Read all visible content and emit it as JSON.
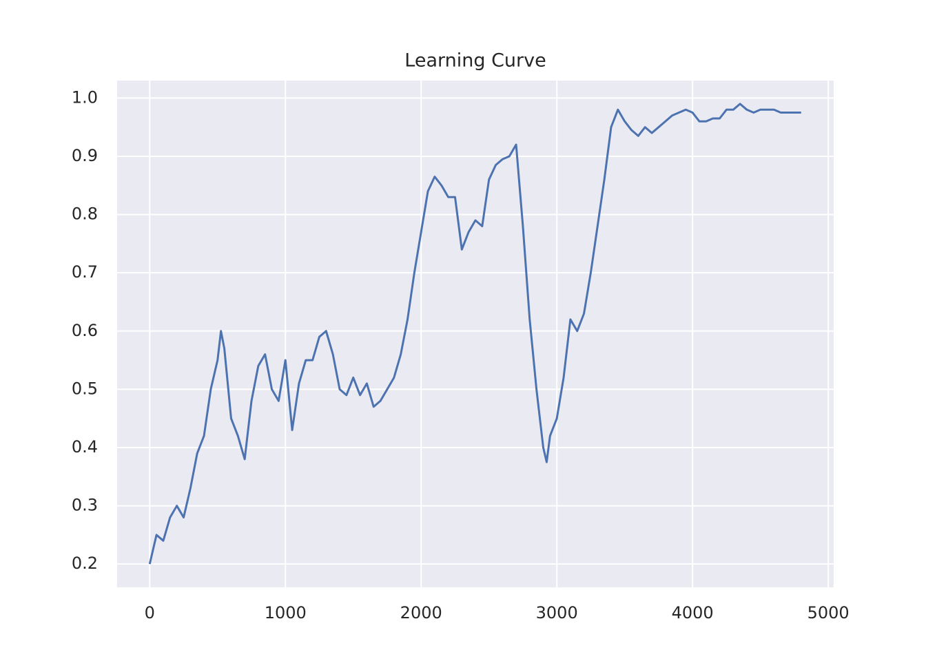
{
  "chart_data": {
    "type": "line",
    "title": "Learning Curve",
    "x": [
      0,
      50,
      100,
      150,
      200,
      250,
      300,
      350,
      400,
      450,
      500,
      525,
      550,
      600,
      650,
      700,
      750,
      800,
      850,
      900,
      950,
      1000,
      1050,
      1100,
      1150,
      1200,
      1250,
      1300,
      1350,
      1400,
      1450,
      1500,
      1550,
      1600,
      1650,
      1700,
      1750,
      1800,
      1850,
      1900,
      1950,
      2000,
      2050,
      2100,
      2150,
      2200,
      2250,
      2300,
      2350,
      2400,
      2450,
      2500,
      2550,
      2600,
      2650,
      2700,
      2750,
      2800,
      2850,
      2900,
      2925,
      2950,
      3000,
      3050,
      3100,
      3150,
      3200,
      3250,
      3300,
      3350,
      3400,
      3450,
      3500,
      3550,
      3600,
      3650,
      3700,
      3750,
      3800,
      3850,
      3900,
      3950,
      4000,
      4050,
      4100,
      4150,
      4200,
      4250,
      4300,
      4350,
      4400,
      4450,
      4500,
      4550,
      4600,
      4650,
      4700,
      4750,
      4800
    ],
    "values": [
      0.2,
      0.25,
      0.24,
      0.28,
      0.3,
      0.28,
      0.33,
      0.39,
      0.42,
      0.5,
      0.55,
      0.6,
      0.57,
      0.45,
      0.42,
      0.38,
      0.48,
      0.54,
      0.56,
      0.5,
      0.48,
      0.55,
      0.43,
      0.51,
      0.55,
      0.55,
      0.59,
      0.6,
      0.56,
      0.5,
      0.49,
      0.52,
      0.49,
      0.51,
      0.47,
      0.48,
      0.5,
      0.52,
      0.56,
      0.62,
      0.7,
      0.77,
      0.84,
      0.865,
      0.85,
      0.83,
      0.83,
      0.74,
      0.77,
      0.79,
      0.78,
      0.86,
      0.885,
      0.895,
      0.9,
      0.92,
      0.78,
      0.62,
      0.5,
      0.4,
      0.375,
      0.42,
      0.45,
      0.52,
      0.62,
      0.6,
      0.63,
      0.7,
      0.78,
      0.86,
      0.95,
      0.98,
      0.96,
      0.945,
      0.935,
      0.95,
      0.94,
      0.95,
      0.96,
      0.97,
      0.975,
      0.98,
      0.975,
      0.96,
      0.96,
      0.965,
      0.965,
      0.98,
      0.98,
      0.99,
      0.98,
      0.975,
      0.98,
      0.98,
      0.98,
      0.975,
      0.975,
      0.975,
      0.975
    ],
    "color": "#4c72b0",
    "xlim": [
      -240,
      5040
    ],
    "xticks": [
      0,
      1000,
      2000,
      3000,
      4000,
      5000
    ],
    "ylim": [
      0.16,
      1.03
    ],
    "yticks": [
      0.2,
      0.3,
      0.4,
      0.5,
      0.6,
      0.7,
      0.8,
      0.9,
      {
        "value": 1,
        "label": "1.0"
      }
    ],
    "grid": true
  }
}
